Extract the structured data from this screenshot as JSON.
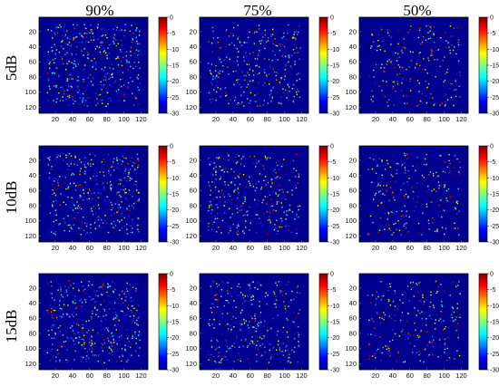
{
  "chart_data": {
    "type": "heatmap",
    "grid": false,
    "columns": [
      "90%",
      "75%",
      "50%"
    ],
    "rows": [
      "5dB",
      "10dB",
      "15dB"
    ],
    "axis_ticks": [
      20,
      40,
      60,
      80,
      100,
      120
    ],
    "axis_range": [
      1,
      128
    ],
    "colorbar": {
      "min": -30,
      "max": 0,
      "ticks": [
        0,
        -5,
        -10,
        -15,
        -20,
        -25,
        -30
      ],
      "colormap": "jet"
    },
    "background_value": -30,
    "point_count": {
      "90%": 420,
      "75%": 320,
      "50%": 220
    },
    "panels": [
      {
        "row": "5dB",
        "column": "90%"
      },
      {
        "row": "5dB",
        "column": "75%"
      },
      {
        "row": "5dB",
        "column": "50%"
      },
      {
        "row": "10dB",
        "column": "90%"
      },
      {
        "row": "10dB",
        "column": "75%"
      },
      {
        "row": "10dB",
        "column": "50%"
      },
      {
        "row": "15dB",
        "column": "90%"
      },
      {
        "row": "15dB",
        "column": "75%"
      },
      {
        "row": "15dB",
        "column": "50%"
      }
    ]
  },
  "colors": {
    "background": "#00008f",
    "frame": "#000000"
  }
}
